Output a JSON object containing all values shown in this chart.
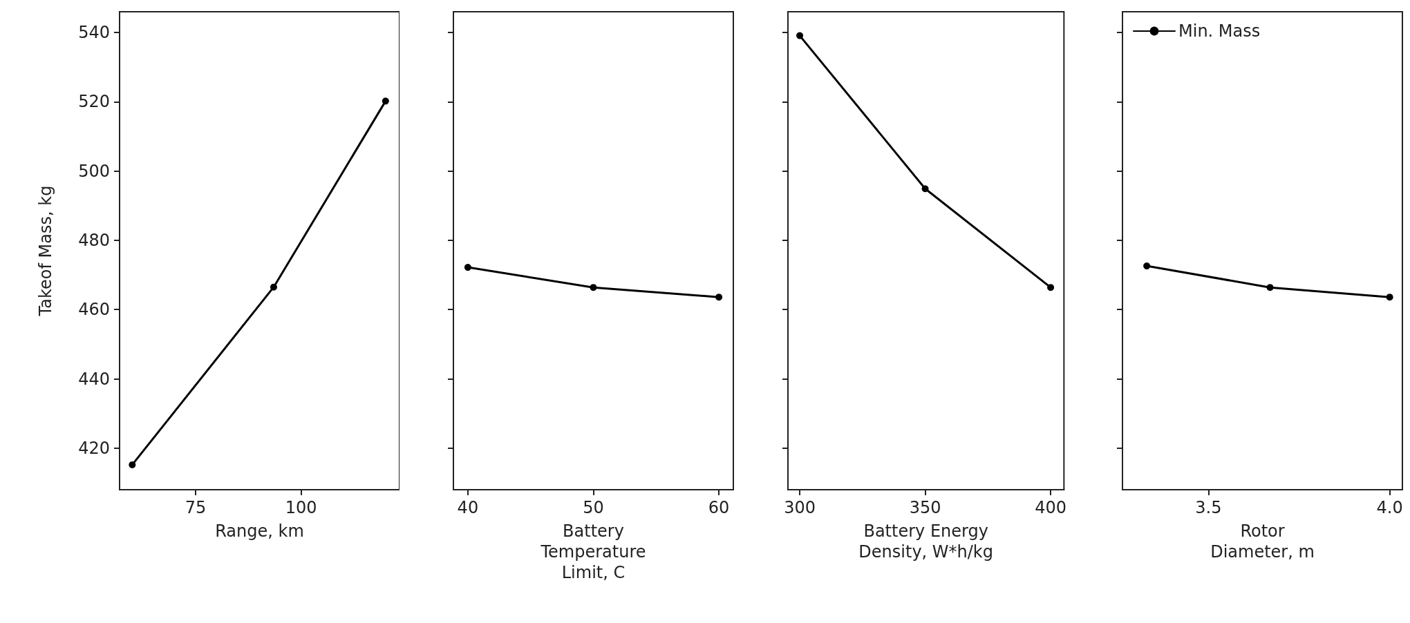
{
  "chart_data": [
    {
      "type": "line",
      "xlabel": "Range, km",
      "ylabel": "Takeof Mass, kg",
      "x": [
        60,
        93.5,
        120
      ],
      "series": [
        {
          "color": "#000000",
          "values": [
            415.2,
            466.5,
            520.2
          ]
        }
      ],
      "xlim": [
        57,
        123.3
      ],
      "xticks": [
        75,
        100
      ],
      "ylim": [
        408,
        546
      ],
      "yticks": [
        420,
        440,
        460,
        480,
        500,
        520,
        540
      ],
      "marker": "circle"
    },
    {
      "type": "line",
      "xlabel": "Battery\nTemperature\nLimit, C",
      "x": [
        40,
        50,
        60
      ],
      "series": [
        {
          "color": "#000000",
          "values": [
            472.2,
            466.4,
            463.6
          ]
        }
      ],
      "xlim": [
        38.85,
        61.15
      ],
      "xticks": [
        40,
        50,
        60
      ],
      "ylim": [
        408,
        546
      ],
      "yticks": [
        420,
        440,
        460,
        480,
        500,
        520,
        540
      ],
      "tick_labels": "x",
      "marker": "circle"
    },
    {
      "type": "line",
      "xlabel": "Battery Energy\nDensity, W*h/kg",
      "x": [
        300,
        350,
        400
      ],
      "series": [
        {
          "color": "#000000",
          "values": [
            539.1,
            494.9,
            466.4
          ]
        }
      ],
      "xlim": [
        295.3,
        405.3
      ],
      "xticks": [
        300,
        350,
        400
      ],
      "ylim": [
        408,
        546
      ],
      "yticks": [
        420,
        440,
        460,
        480,
        500,
        520,
        540
      ],
      "tick_labels": "x",
      "marker": "circle"
    },
    {
      "type": "line",
      "xlabel": "Rotor\nDiameter, m",
      "x": [
        3.33,
        3.67,
        4.0
      ],
      "series": [
        {
          "name": "Min. Mass",
          "color": "#000000",
          "values": [
            472.6,
            466.4,
            463.6
          ]
        }
      ],
      "xlim": [
        3.263,
        4.035
      ],
      "xticks": [
        3.5,
        {
          "value": 4,
          "label": "4.0"
        }
      ],
      "ylim": [
        408,
        546
      ],
      "yticks": [
        420,
        440,
        460,
        480,
        500,
        520,
        540
      ],
      "tick_labels": "x",
      "marker": "circle",
      "legend": "top left"
    }
  ]
}
